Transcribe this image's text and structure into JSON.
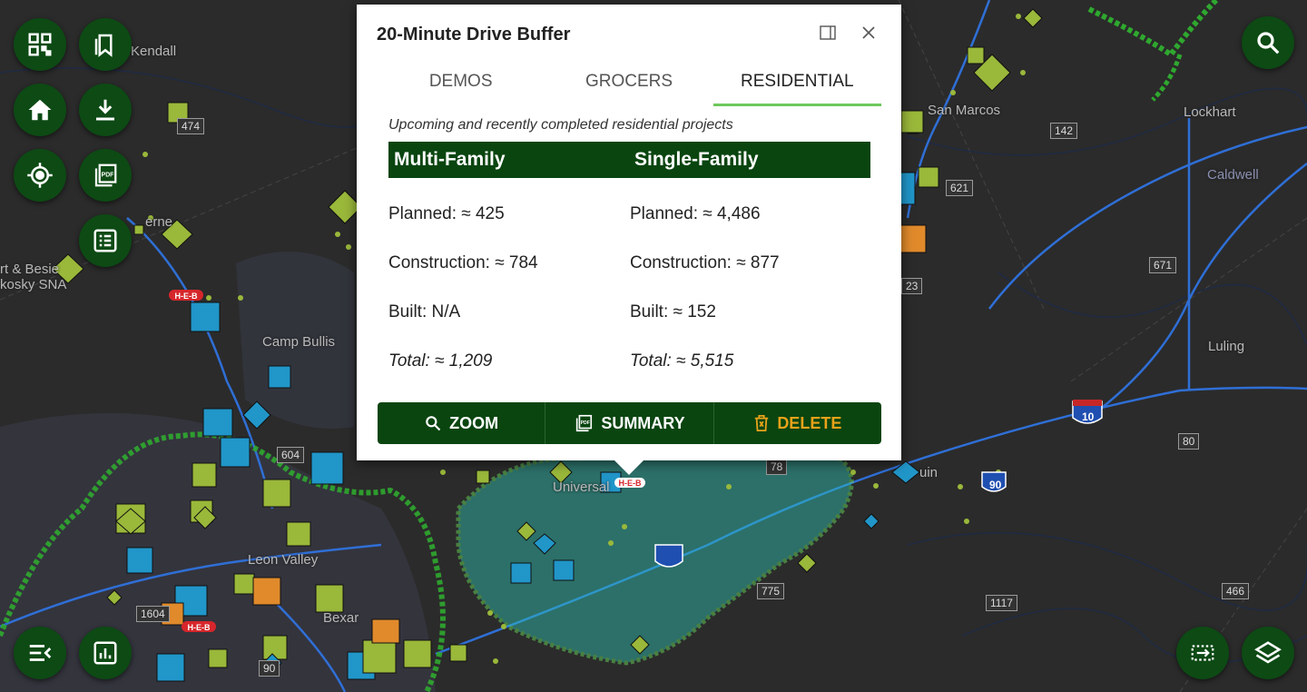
{
  "popup": {
    "title": "20-Minute Drive Buffer",
    "tabs": [
      "DEMOS",
      "GROCERS",
      "RESIDENTIAL"
    ],
    "active_tab": "RESIDENTIAL",
    "subtitle": "Upcoming and recently completed residential projects",
    "columns": {
      "multi": {
        "heading": "Multi-Family",
        "planned": "Planned: ≈ 425",
        "construction": "Construction: ≈ 784",
        "built": "Built: N/A",
        "total": "Total: ≈ 1,209"
      },
      "single": {
        "heading": "Single-Family",
        "planned": "Planned: ≈ 4,486",
        "construction": "Construction: ≈ 877",
        "built": "Built: ≈ 152",
        "total": "Total: ≈ 5,515"
      }
    },
    "actions": {
      "zoom": "ZOOM",
      "summary": "SUMMARY",
      "delete": "DELETE"
    }
  },
  "map": {
    "places": [
      "Kendall",
      "San Marcos",
      "Lockhart",
      "Caldwell",
      "Luling",
      "Camp Bullis",
      "Leon Valley",
      "Universal",
      "Bexar",
      "rt & Besie",
      "kosky SNA",
      "erne",
      "uin"
    ],
    "shields": [
      "474",
      "142",
      "621",
      "671",
      "23",
      "80",
      "10",
      "90",
      "78",
      "775",
      "1117",
      "466",
      "1604",
      "90",
      "604"
    ],
    "store_marker": "H-E-B"
  },
  "toolbar": {
    "left_icons": [
      "qr-code-icon",
      "bookmarks-icon",
      "home-icon",
      "download-icon",
      "locate-icon",
      "pdf-icon",
      "list-icon",
      "menu-collapse-icon",
      "bar-chart-icon"
    ],
    "right_icons": [
      "search-icon",
      "measure-icon",
      "layers-icon"
    ]
  },
  "colors": {
    "accent_dark_green": "#0a4510",
    "fab_green": "#0d4a14",
    "tab_underline": "#6ec85c",
    "delete_orange": "#e8a21a",
    "buffer_teal": "#2ec4b6",
    "buffer_outline": "#6ee85c",
    "road_blue": "#2f6fd6",
    "marker_lime": "#9ab83a",
    "marker_blue": "#2196c9",
    "marker_orange": "#e08a2c"
  }
}
